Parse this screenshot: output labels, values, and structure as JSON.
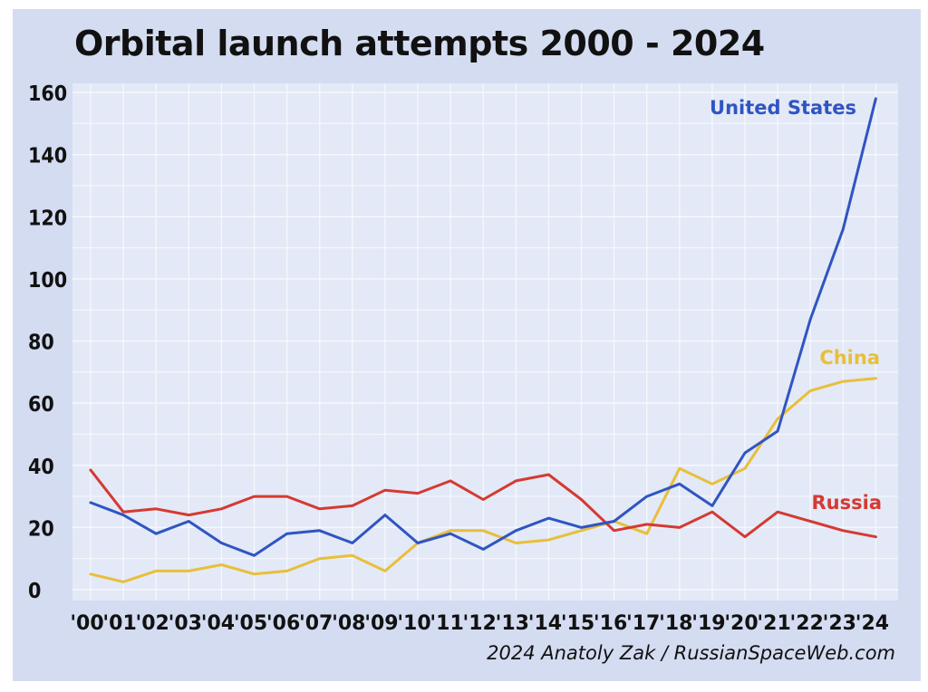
{
  "chart_data": {
    "type": "line",
    "title": "Orbital launch attempts 2000 - 2024",
    "xlabel": "",
    "ylabel": "",
    "ylim": [
      0,
      160
    ],
    "yticks": [
      0,
      20,
      40,
      60,
      80,
      100,
      120,
      140,
      160
    ],
    "grid": true,
    "legend": "labels placed beside line ends",
    "categories": [
      "'00",
      "'01",
      "'02",
      "'03",
      "'04",
      "'05",
      "'06",
      "'07",
      "'08",
      "'09",
      "'10",
      "'11",
      "'12",
      "'13",
      "'14",
      "'15",
      "'16",
      "'17",
      "'18",
      "'19",
      "'20",
      "'21",
      "'22",
      "'23",
      "'24"
    ],
    "series": [
      {
        "name": "United States",
        "color": "#2f55c2",
        "values": [
          28,
          24,
          18,
          22,
          15,
          11,
          18,
          19,
          15,
          24,
          15,
          18,
          13,
          19,
          23,
          20,
          22,
          30,
          34,
          27,
          44,
          51,
          87,
          116,
          158
        ]
      },
      {
        "name": "China",
        "color": "#e8bf3a",
        "values": [
          5,
          2.5,
          6,
          6,
          8,
          5,
          6,
          10,
          11,
          6,
          15,
          19,
          19,
          15,
          16,
          19,
          22,
          18,
          39,
          34,
          39,
          55,
          64,
          67,
          68
        ]
      },
      {
        "name": "Russia",
        "color": "#d43a33",
        "values": [
          38.5,
          25,
          26,
          24,
          26,
          30,
          30,
          26,
          27,
          32,
          31,
          35,
          29,
          35,
          37,
          29,
          19,
          21,
          20,
          25,
          17,
          25,
          22,
          19,
          17
        ]
      }
    ]
  },
  "credit": "2024 Anatoly Zak / RussianSpaceWeb.com",
  "colors": {
    "background": "#d4dcf1",
    "plot_background": "#e3e9f6",
    "grid": "#f6f8fd"
  }
}
